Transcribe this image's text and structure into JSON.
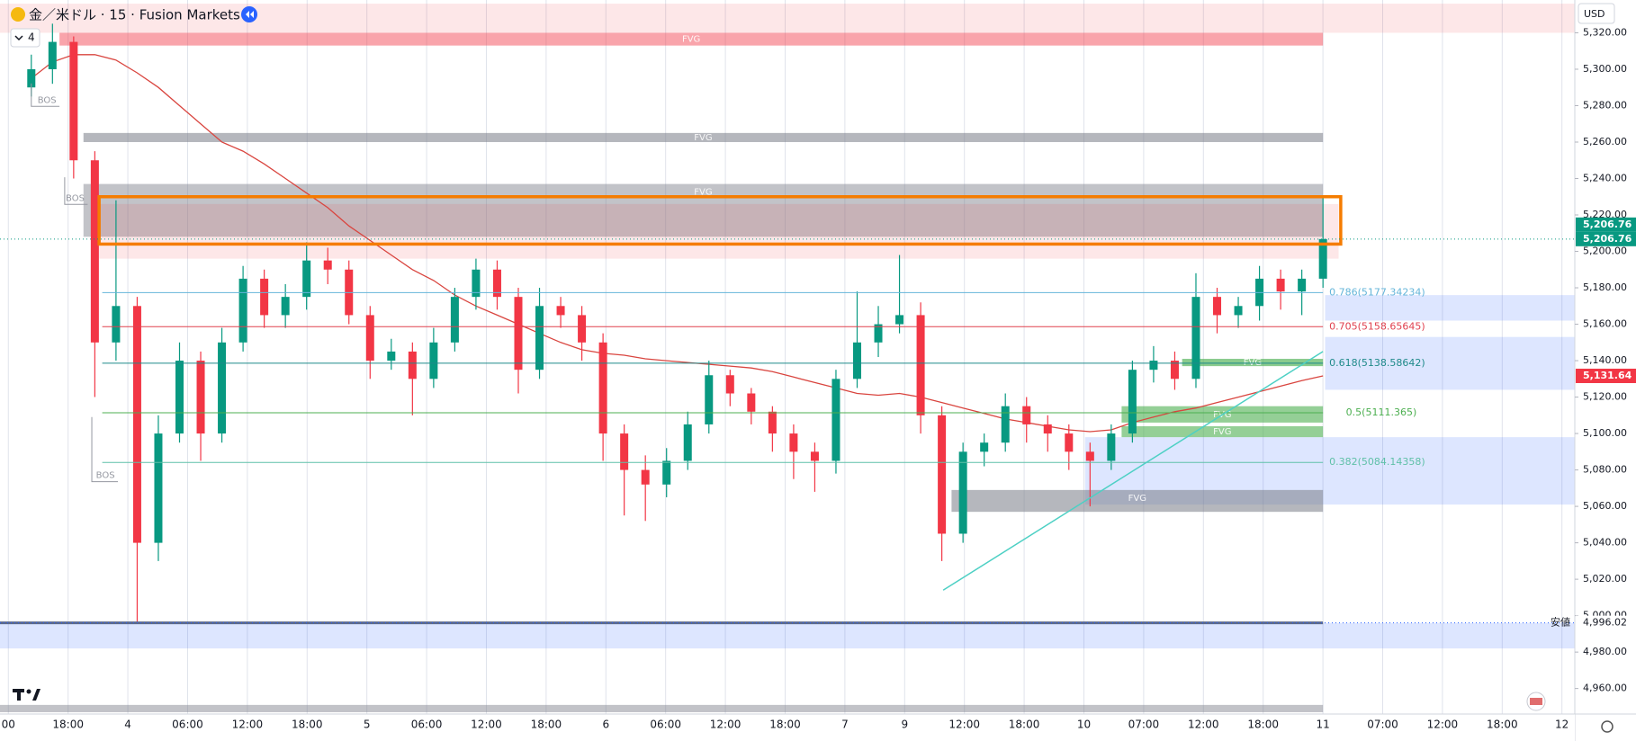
{
  "header": {
    "symbol": "金／米ドル · 15 · Fusion Markets",
    "indicator_count": "4"
  },
  "currency": "USD",
  "chart_data": {
    "type": "candlestick",
    "categories": [
      "00",
      "18:00",
      "4",
      "06:00",
      "12:00",
      "18:00",
      "5",
      "06:00",
      "12:00",
      "18:00",
      "6",
      "06:00",
      "12:00",
      "18:00",
      "7",
      "9",
      "12:00",
      "18:00",
      "10",
      "07:00",
      "12:00",
      "18:00",
      "11",
      "07:00",
      "12:00",
      "18:00",
      "12"
    ],
    "open": [
      5290,
      5300,
      5315,
      5250,
      5150,
      5170,
      5040,
      5100,
      5140,
      5100,
      5150,
      5185,
      5165,
      5175,
      5195,
      5190,
      5165,
      5140,
      5145,
      5130,
      5150,
      5175,
      5190,
      5175,
      5135,
      5170,
      5165,
      5150,
      5100,
      5080,
      5072,
      5085,
      5105,
      5132,
      5122,
      5112,
      5100,
      5090,
      5085,
      5130,
      5150,
      5160,
      5165,
      5110,
      5045,
      5090,
      5095,
      5115,
      5105,
      5100,
      5090,
      5085,
      5100,
      5135,
      5140,
      5130,
      5175,
      5165,
      5170,
      5185,
      5178,
      5185
    ],
    "high": [
      5308,
      5325,
      5318,
      5255,
      5228,
      5175,
      5110,
      5150,
      5145,
      5158,
      5192,
      5190,
      5182,
      5205,
      5202,
      5195,
      5170,
      5152,
      5150,
      5158,
      5180,
      5196,
      5195,
      5180,
      5180,
      5175,
      5170,
      5155,
      5105,
      5088,
      5092,
      5112,
      5140,
      5135,
      5125,
      5115,
      5105,
      5095,
      5135,
      5178,
      5170,
      5198,
      5172,
      5115,
      5095,
      5100,
      5122,
      5120,
      5110,
      5105,
      5095,
      5105,
      5140,
      5148,
      5145,
      5188,
      5180,
      5175,
      5192,
      5190,
      5190,
      5230
    ],
    "low": [
      5285,
      5292,
      5240,
      5120,
      5140,
      4996.02,
      5030,
      5095,
      5085,
      5095,
      5145,
      5158,
      5158,
      5168,
      5182,
      5160,
      5130,
      5135,
      5110,
      5125,
      5145,
      5168,
      5168,
      5122,
      5130,
      5158,
      5140,
      5085,
      5055,
      5052,
      5065,
      5080,
      5100,
      5115,
      5105,
      5090,
      5075,
      5068,
      5078,
      5125,
      5142,
      5155,
      5100,
      5030,
      5040,
      5082,
      5090,
      5095,
      5090,
      5080,
      5060,
      5080,
      5095,
      5128,
      5124,
      5125,
      5155,
      5158,
      5162,
      5168,
      5165,
      5180
    ],
    "close": [
      5300,
      5315,
      5250,
      5150,
      5170,
      5040,
      5100,
      5140,
      5100,
      5150,
      5185,
      5165,
      5175,
      5195,
      5190,
      5165,
      5140,
      5145,
      5130,
      5150,
      5175,
      5190,
      5175,
      5135,
      5170,
      5165,
      5150,
      5100,
      5080,
      5072,
      5085,
      5105,
      5132,
      5122,
      5112,
      5100,
      5090,
      5085,
      5130,
      5150,
      5160,
      5165,
      5110,
      5045,
      5090,
      5095,
      5115,
      5105,
      5100,
      5090,
      5085,
      5100,
      5135,
      5140,
      5130,
      5175,
      5165,
      5170,
      5185,
      5178,
      5185,
      5206.76
    ],
    "up_color": "#089981",
    "down_color": "#f23645",
    "ma": {
      "color": "#d9453f",
      "values": [
        5295,
        5304,
        5308,
        5308,
        5305,
        5298,
        5290,
        5280,
        5270,
        5260,
        5255,
        5248,
        5240,
        5232,
        5224,
        5214,
        5206,
        5198,
        5190,
        5184,
        5176,
        5170,
        5165,
        5160,
        5155,
        5150,
        5146,
        5144,
        5143,
        5141,
        5140,
        5139,
        5138,
        5137,
        5136,
        5134,
        5131,
        5128,
        5125,
        5122,
        5121,
        5122,
        5120,
        5117,
        5114,
        5111,
        5108,
        5106,
        5104,
        5102,
        5101,
        5102,
        5106,
        5109,
        5112,
        5114,
        5117,
        5120,
        5123,
        5126,
        5129,
        5131.64
      ]
    },
    "ylim": [
      4946,
      5338
    ],
    "yticks": [
      {
        "value": 5320,
        "label": "5,320.00"
      },
      {
        "value": 5300,
        "label": "5,300.00"
      },
      {
        "value": 5280,
        "label": "5,280.00"
      },
      {
        "value": 5260,
        "label": "5,260.00"
      },
      {
        "value": 5240,
        "label": "5,240.00"
      },
      {
        "value": 5220,
        "label": "5,220.00"
      },
      {
        "value": 5200,
        "label": "5,200.00"
      },
      {
        "value": 5180,
        "label": "5,180.00"
      },
      {
        "value": 5160,
        "label": "5,160.00"
      },
      {
        "value": 5140,
        "label": "5,140.00"
      },
      {
        "value": 5120,
        "label": "5,120.00"
      },
      {
        "value": 5100,
        "label": "5,100.00"
      },
      {
        "value": 5080,
        "label": "5,080.00"
      },
      {
        "value": 5060,
        "label": "5,060.00"
      },
      {
        "value": 5040,
        "label": "5,040.00"
      },
      {
        "value": 5020,
        "label": "5,020.00"
      },
      {
        "value": 5000,
        "label": "5,000.00"
      },
      {
        "value": 4980,
        "label": "4,980.00"
      },
      {
        "value": 4960,
        "label": "4,960.00"
      }
    ],
    "grid": true,
    "zones": [
      {
        "top": 5336,
        "bottom": 5320,
        "color": "rgba(242,54,69,0.12)"
      },
      {
        "top": 5320,
        "bottom": 5313,
        "color": "rgba(242,54,69,0.45)",
        "label": "FVG"
      },
      {
        "top": 5265,
        "bottom": 5260,
        "color": "rgba(120,123,134,0.55)",
        "label": "FVG"
      },
      {
        "top": 5237,
        "bottom": 5208,
        "color": "rgba(120,123,134,0.45)",
        "label": "FVG"
      },
      {
        "top": 5226,
        "bottom": 5196,
        "color": "rgba(242,54,69,0.12)"
      },
      {
        "top": 5176,
        "bottom": 5162,
        "color": "rgba(41,98,255,0.16)"
      },
      {
        "top": 5153,
        "bottom": 5124,
        "color": "rgba(41,98,255,0.16)"
      },
      {
        "top": 5098,
        "bottom": 5061,
        "color": "rgba(41,98,255,0.16)"
      },
      {
        "top": 5141,
        "bottom": 5137,
        "color": "rgba(76,175,80,0.65)",
        "label": "FVG"
      },
      {
        "top": 5115,
        "bottom": 5106,
        "color": "rgba(76,175,80,0.6)",
        "label": "FVG"
      },
      {
        "top": 5104,
        "bottom": 5098,
        "color": "rgba(76,175,80,0.6)",
        "label": "FVG"
      },
      {
        "top": 5069,
        "bottom": 5057,
        "color": "rgba(120,123,134,0.55)",
        "label": "FVG"
      },
      {
        "top": 4996,
        "bottom": 4982,
        "color": "rgba(41,98,255,0.16)"
      },
      {
        "top": 4951,
        "bottom": 4947,
        "color": "rgba(120,123,134,0.45)"
      }
    ],
    "highlight": {
      "top": 5230,
      "bottom": 5204,
      "color": "#f57c00"
    },
    "fib_levels": [
      {
        "value": 5177.34234,
        "label": "0.786(5177.34234)",
        "color": "#64b5d9"
      },
      {
        "value": 5158.65645,
        "label": "0.705(5158.65645)",
        "color": "#e0414f"
      },
      {
        "value": 5138.58642,
        "label": "0.618(5138.58642)",
        "color": "#1f8a8a"
      },
      {
        "value": 5111.365,
        "label": "0.5(5111.365)",
        "color": "#4caf50"
      },
      {
        "value": 5084.14358,
        "label": "0.382(5084.14358)",
        "color": "#5fc0a8"
      }
    ],
    "trendline": {
      "start": 5014,
      "end": 5145,
      "color": "#4dd0c4"
    },
    "annotations": [
      "BOS",
      "BOS",
      "BOS"
    ],
    "price_labels": [
      {
        "value": 5206.76,
        "label": "5,206.76",
        "color": "#089981"
      },
      {
        "value": 5206.76,
        "label": "5,206.76",
        "color": "#089981"
      },
      {
        "value": 5131.64,
        "label": "5,131.64",
        "color": "#f23645"
      },
      {
        "value": 4996.02,
        "label": "4,996.02",
        "color": "#ffffff",
        "tag": "安値"
      }
    ]
  }
}
